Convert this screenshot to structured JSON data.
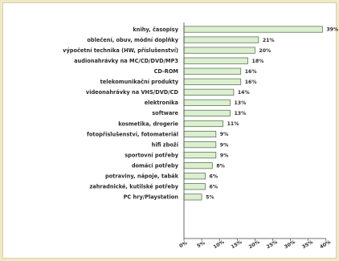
{
  "chart_data": {
    "type": "bar",
    "orientation": "horizontal",
    "categories": [
      "knihy, časopisy",
      "oblečení, obuv, módní doplňky",
      "výpočetní technika (HW, příslušenství)",
      "audionahrávky na MC/CD/DVD/MP3",
      "CD-ROM",
      "telekomunikační produkty",
      "videonahrávky na VHS/DVD/CD",
      "elektronika",
      "software",
      "kosmetika, drogerie",
      "fotopříslušenství, fotomateriál",
      "hifi zboží",
      "sportovní potřeby",
      "domácí potřeby",
      "potraviny, nápoje, tabák",
      "zahradnické, kutilské potřeby",
      "PC hry/Playstation"
    ],
    "values": [
      39,
      21,
      20,
      18,
      16,
      16,
      14,
      13,
      13,
      11,
      9,
      9,
      9,
      8,
      6,
      6,
      5
    ],
    "value_labels": [
      "39%",
      "21%",
      "20%",
      "18%",
      "16%",
      "16%",
      "14%",
      "13%",
      "13%",
      "11%",
      "9%",
      "9%",
      "9%",
      "8%",
      "6%",
      "6%",
      "5%"
    ],
    "x_ticks": [
      "0%",
      "5%",
      "10%",
      "15%",
      "20%",
      "25%",
      "30%",
      "35%",
      "40%"
    ],
    "xlim": [
      0,
      40
    ],
    "grid": false,
    "colors": {
      "bar_fill": "#dcefd0",
      "bar_stroke": "#5e7a58",
      "background": "#efe9c7"
    }
  }
}
